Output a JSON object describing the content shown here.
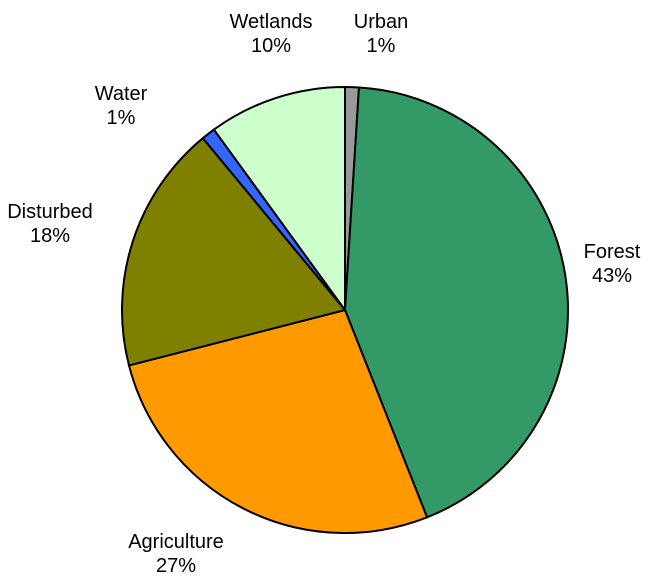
{
  "chart_data": {
    "type": "pie",
    "start_angle_deg": 0,
    "direction": "clockwise",
    "slices": [
      {
        "label": "Urban",
        "value": 1,
        "value_label": "1%",
        "color": "#999999"
      },
      {
        "label": "Forest",
        "value": 43,
        "value_label": "43%",
        "color": "#339966"
      },
      {
        "label": "Agriculture",
        "value": 27,
        "value_label": "27%",
        "color": "#FF9900"
      },
      {
        "label": "Disturbed",
        "value": 18,
        "value_label": "18%",
        "color": "#808000"
      },
      {
        "label": "Water",
        "value": 1,
        "value_label": "1%",
        "color": "#3366FF"
      },
      {
        "label": "Wetlands",
        "value": 10,
        "value_label": "10%",
        "color": "#CCFFCC"
      }
    ]
  }
}
